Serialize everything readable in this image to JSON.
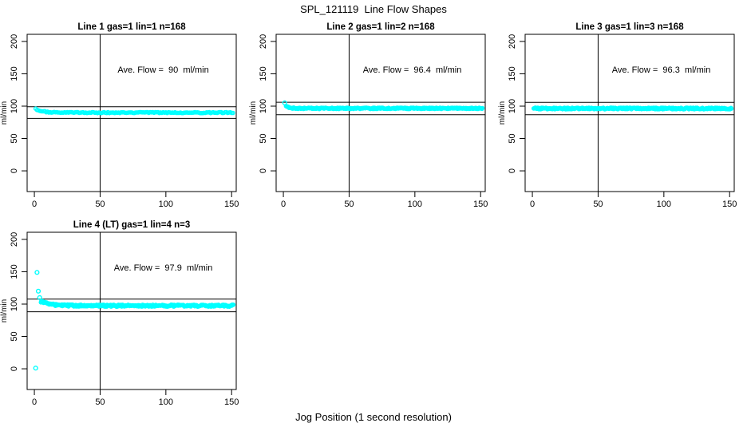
{
  "figure": {
    "title": "SPL_121119  Line Flow Shapes",
    "xlabel": "Jog Position (1 second resolution)",
    "background_color": "#ffffff",
    "point_color": "#00ffff",
    "axis_color": "#000000",
    "text_color": "#000000"
  },
  "chart_data": [
    {
      "type": "scatter",
      "grid": [
        0,
        0
      ],
      "title": "Line 1 gas=1 lin=1 n=168",
      "ylabel": "ml/min",
      "annotation": "Ave. Flow =  90  ml/min",
      "annotation_xy": [
        98,
        152
      ],
      "avg_flow": 90,
      "n_points": 168,
      "xlim": [
        -5.5,
        153.5
      ],
      "ylim": [
        -32,
        211
      ],
      "x_ticks": [
        0,
        50,
        100,
        150
      ],
      "y_ticks": [
        0,
        50,
        100,
        150,
        200
      ],
      "vline_x": 50,
      "hlines": [
        99,
        81
      ],
      "outlier_points": [],
      "band": {
        "x_start": 1,
        "x_end": 151,
        "y_start": 95.5,
        "y_settle": 90,
        "settle_x": 14,
        "noise": 0.8,
        "density": 1
      }
    },
    {
      "type": "scatter",
      "grid": [
        0,
        1
      ],
      "title": "Line 2 gas=1 lin=2 n=168",
      "ylabel": "ml/min",
      "annotation": "Ave. Flow =  96.4  ml/min",
      "annotation_xy": [
        98,
        152
      ],
      "avg_flow": 96.4,
      "n_points": 168,
      "xlim": [
        -5.5,
        153.5
      ],
      "ylim": [
        -32,
        211
      ],
      "x_ticks": [
        0,
        50,
        100,
        150
      ],
      "y_ticks": [
        0,
        50,
        100,
        150,
        200
      ],
      "vline_x": 50,
      "hlines": [
        106,
        86.8
      ],
      "outlier_points": [
        [
          1,
          105
        ]
      ],
      "band": {
        "x_start": 2,
        "x_end": 151,
        "y_start": 100,
        "y_settle": 96.6,
        "settle_x": 8,
        "noise": 1.0,
        "density": 2
      }
    },
    {
      "type": "scatter",
      "grid": [
        0,
        2
      ],
      "title": "Line 3 gas=1 lin=3 n=168",
      "ylabel": "ml/min",
      "annotation": "Ave. Flow =  96.3  ml/min",
      "annotation_xy": [
        98,
        152
      ],
      "avg_flow": 96.3,
      "n_points": 168,
      "xlim": [
        -5.5,
        153.5
      ],
      "ylim": [
        -32,
        211
      ],
      "x_ticks": [
        0,
        50,
        100,
        150
      ],
      "y_ticks": [
        0,
        50,
        100,
        150,
        200
      ],
      "vline_x": 50,
      "hlines": [
        105.9,
        86.7
      ],
      "outlier_points": [],
      "band": {
        "x_start": 1,
        "x_end": 151,
        "y_start": 97.2,
        "y_settle": 96.4,
        "settle_x": 5,
        "noise": 1.2,
        "density": 2
      }
    },
    {
      "type": "scatter",
      "grid": [
        1,
        0
      ],
      "title": "Line 4 (LT) gas=1 lin=4 n=3",
      "ylabel": "ml/min",
      "annotation": "Ave. Flow =  97.9  ml/min",
      "annotation_xy": [
        98,
        152
      ],
      "avg_flow": 97.9,
      "n_points": 3,
      "xlim": [
        -5.5,
        153.5
      ],
      "ylim": [
        -32,
        211
      ],
      "x_ticks": [
        0,
        50,
        100,
        150
      ],
      "y_ticks": [
        0,
        50,
        100,
        150,
        200
      ],
      "vline_x": 50,
      "hlines": [
        107.7,
        88.1
      ],
      "outlier_points": [
        [
          1,
          1
        ],
        [
          2,
          149
        ],
        [
          3,
          120
        ],
        [
          4,
          110
        ]
      ],
      "band": {
        "x_start": 5,
        "x_end": 151,
        "y_start": 104,
        "y_settle": 97.5,
        "settle_x": 22,
        "noise": 1.5,
        "density": 2
      }
    }
  ]
}
